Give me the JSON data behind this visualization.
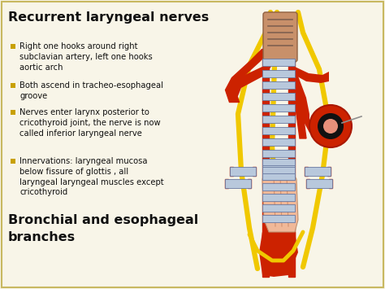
{
  "bg_color": "#f8f5e8",
  "border_color": "#c8b860",
  "title": "Recurrent laryngeal nerves",
  "title_fontsize": 11.5,
  "bullet_color": "#c8a000",
  "bullets": [
    "Right one hooks around right\nsubclavian artery, left one hooks\naortic arch",
    "Both ascend in tracheo-esophageal\ngroove",
    "Nerves enter larynx posterior to\ncricothyroid joint, the nerve is now\ncalled inferior laryngeal nerve",
    "Innervations: laryngeal mucosa\nbelow fissure of glottis , all\nlaryngeal laryngeal muscles except\ncricothyroid"
  ],
  "subtitle": "Bronchial and esophageal\nbranches",
  "subtitle_fontsize": 11.5,
  "text_color": "#111111",
  "red_color": "#cc2200",
  "yellow_color": "#f0c800",
  "pink_color": "#f0b898",
  "ring_color": "#b8c8dc",
  "ring_dark": "#6878a0",
  "brown_color": "#c8906a"
}
